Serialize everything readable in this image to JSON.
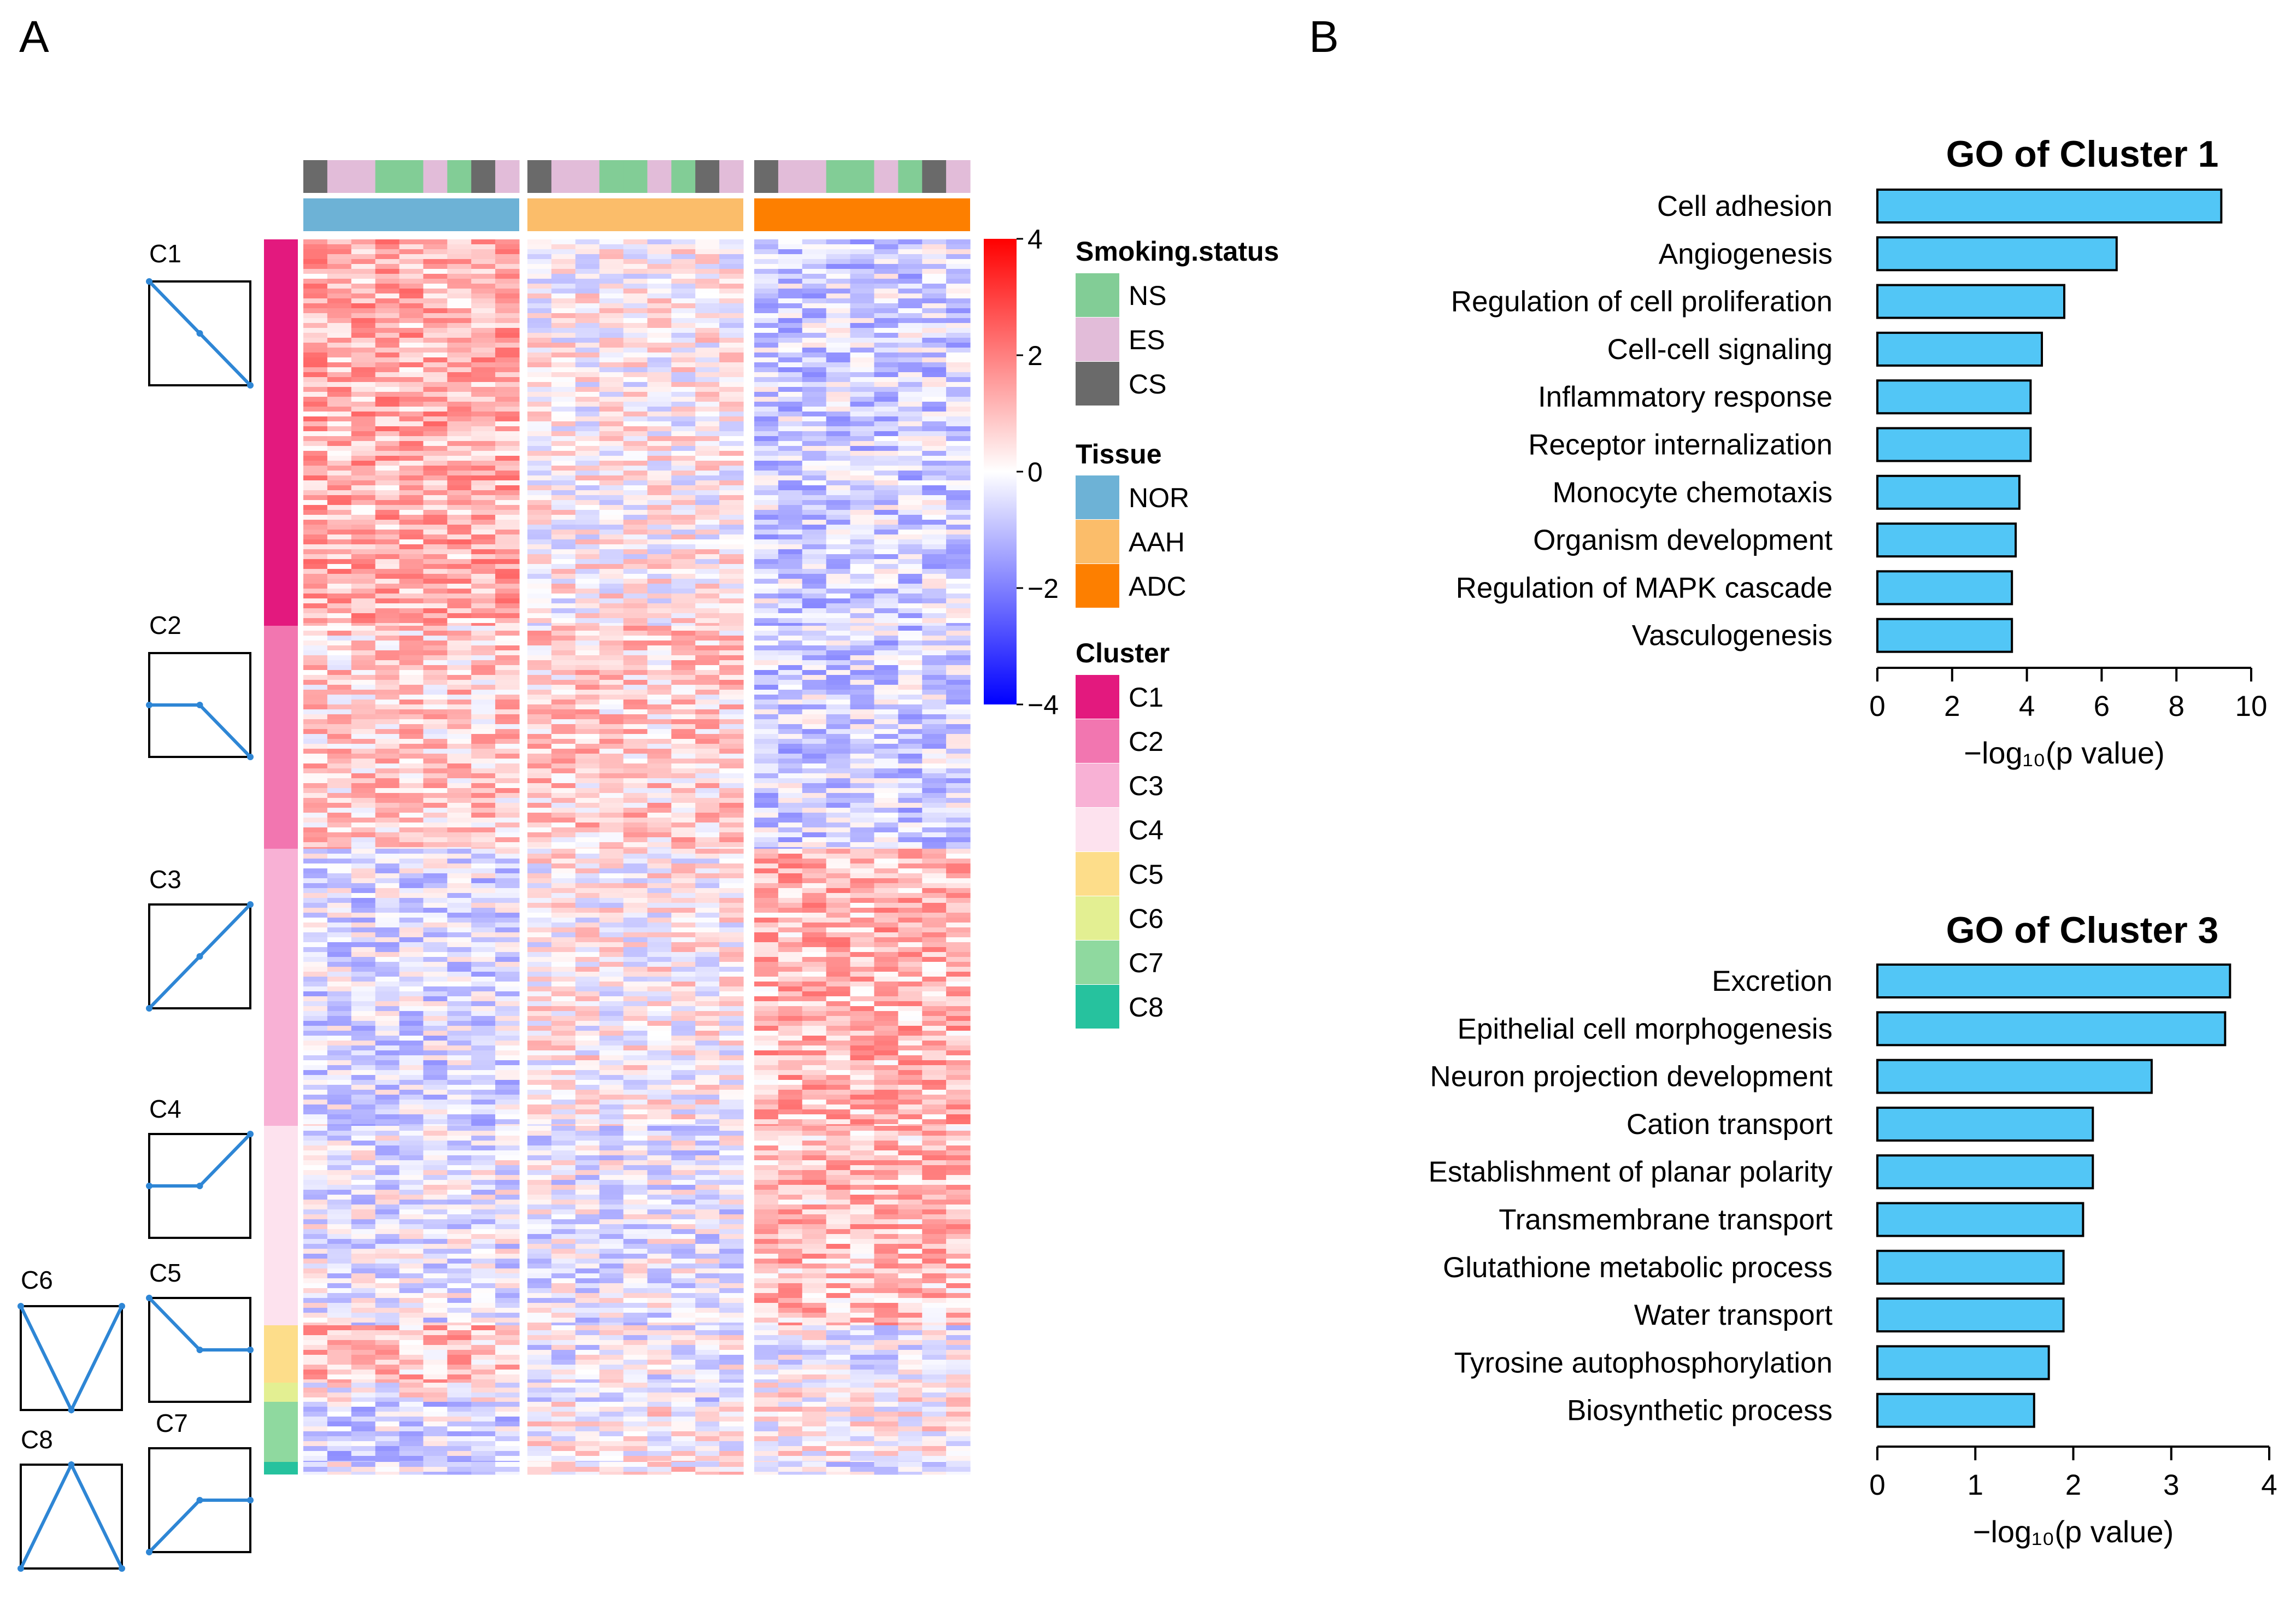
{
  "panels": {
    "a": "A",
    "b": "B"
  },
  "colors": {
    "NS": "#82cd96",
    "ES": "#e2bcd9",
    "CS": "#6a6a6a",
    "NOR": "#6db2d6",
    "AAH": "#fbbd6a",
    "ADC": "#fd7f00",
    "C1": "#e3197e",
    "C2": "#f276b0",
    "C3": "#f8b1d5",
    "C4": "#fde2ee",
    "C5": "#fddd8a",
    "C6": "#e3ef92",
    "C7": "#8fd99f",
    "C8": "#26c29e",
    "bar": "#52c6f6",
    "profile_line": "#2e86d5"
  },
  "legend": {
    "smoking_title": "Smoking.status",
    "smoking": [
      "NS",
      "ES",
      "CS"
    ],
    "tissue_title": "Tissue",
    "tissue": [
      "NOR",
      "AAH",
      "ADC"
    ],
    "cluster_title": "Cluster",
    "clusters": [
      "C1",
      "C2",
      "C3",
      "C4",
      "C5",
      "C6",
      "C7",
      "C8"
    ]
  },
  "colorbar": {
    "ticks": [
      "4",
      "2",
      "0",
      "−2",
      "−4"
    ],
    "min": -4,
    "max": 4
  },
  "profile_labels": [
    "C1",
    "C2",
    "C3",
    "C4",
    "C5",
    "C6",
    "C7",
    "C8"
  ],
  "chart_data": [
    {
      "type": "heatmap",
      "tissue_groups": [
        "NOR",
        "AAH",
        "ADC"
      ],
      "smoking_per_column": [
        "CS",
        "ES",
        "ES",
        "NS",
        "NS",
        "ES",
        "NS",
        "CS",
        "ES"
      ],
      "clusters": [
        {
          "name": "C1",
          "profile": [
            1,
            0.5,
            0
          ],
          "mean": [
            2.2,
            0.3,
            -1.2
          ]
        },
        {
          "name": "C2",
          "profile": [
            0.5,
            0.5,
            0
          ],
          "mean": [
            1.3,
            1.3,
            -1.2
          ]
        },
        {
          "name": "C3",
          "profile": [
            0,
            0.5,
            1
          ],
          "mean": [
            -0.9,
            0.3,
            2.0
          ]
        },
        {
          "name": "C4",
          "profile": [
            0.5,
            0.5,
            1
          ],
          "mean": [
            -0.5,
            -0.5,
            1.8
          ]
        },
        {
          "name": "C5",
          "profile": [
            1,
            0.5,
            0.5
          ],
          "mean": [
            1.8,
            -0.4,
            -0.4
          ]
        },
        {
          "name": "C6",
          "profile": [
            1,
            0,
            1
          ],
          "mean": [
            0.3,
            -0.9,
            0.3
          ]
        },
        {
          "name": "C7",
          "profile": [
            0,
            0.5,
            0.5
          ],
          "mean": [
            -1.0,
            0.4,
            0.4
          ]
        },
        {
          "name": "C8",
          "profile": [
            0,
            1,
            0
          ],
          "mean": [
            -0.5,
            0.6,
            -0.5
          ]
        }
      ]
    },
    {
      "type": "bar",
      "orientation": "horizontal",
      "title": "GO of Cluster 1",
      "categories": [
        "Cell adhesion",
        "Angiogenesis",
        "Regulation of cell proliferation",
        "Cell-cell signaling",
        "Inflammatory response",
        "Receptor internalization",
        "Monocyte chemotaxis",
        "Organism development",
        "Regulation of MAPK cascade",
        "Vasculogenesis"
      ],
      "values": [
        9.2,
        6.4,
        5.0,
        4.4,
        4.1,
        4.1,
        3.8,
        3.7,
        3.6,
        3.6
      ],
      "xlabel": "−log₁₀(p value)",
      "xlim": [
        0,
        10
      ],
      "xticks": [
        "0",
        "2",
        "4",
        "6",
        "8",
        "10"
      ]
    },
    {
      "type": "bar",
      "orientation": "horizontal",
      "title": "GO of Cluster 3",
      "categories": [
        "Excretion",
        "Epithelial cell morphogenesis",
        "Neuron projection development",
        "Cation transport",
        "Establishment of planar polarity",
        "Transmembrane transport",
        "Glutathione metabolic process",
        "Water transport",
        "Tyrosine autophosphorylation",
        "Biosynthetic process"
      ],
      "values": [
        3.6,
        3.55,
        2.8,
        2.2,
        2.2,
        2.1,
        1.9,
        1.9,
        1.75,
        1.6
      ],
      "xlabel": "−log₁₀(p value)",
      "xlim": [
        0,
        4
      ],
      "xticks": [
        "0",
        "1",
        "2",
        "3",
        "4"
      ]
    }
  ]
}
